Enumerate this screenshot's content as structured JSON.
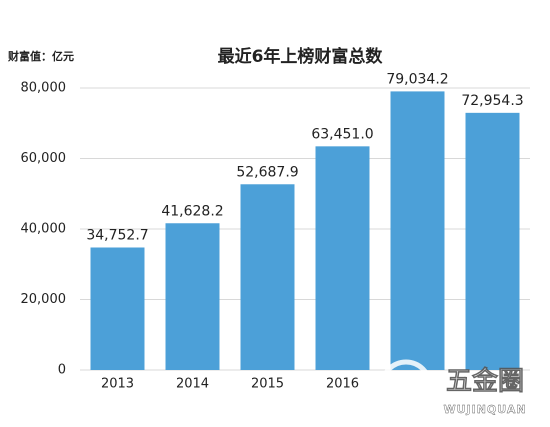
{
  "chart_data": {
    "type": "bar",
    "title": "最近6年上榜财富总数",
    "y_label": "财富值：亿元",
    "categories": [
      "2013",
      "2014",
      "2015",
      "2016",
      null,
      null
    ],
    "values": [
      34752.7,
      41628.2,
      52687.9,
      63451.0,
      79034.2,
      72954.3
    ],
    "value_labels": [
      "34,752.7",
      "41,628.2",
      "52,687.9",
      "63,451.0",
      "79,034.2",
      "72,954.3"
    ],
    "color": "#4ca0d8",
    "ylim": [
      0,
      80000
    ],
    "yticks": [
      0,
      {
        "value": 20000,
        "label": "20,000"
      },
      {
        "value": 40000,
        "label": "40,000"
      },
      {
        "value": 60000,
        "label": "60,000"
      },
      {
        "value": 80000,
        "label": "80,000"
      }
    ],
    "grid": true,
    "watermark": [
      "五金圈",
      "WUJINQUAN"
    ]
  }
}
